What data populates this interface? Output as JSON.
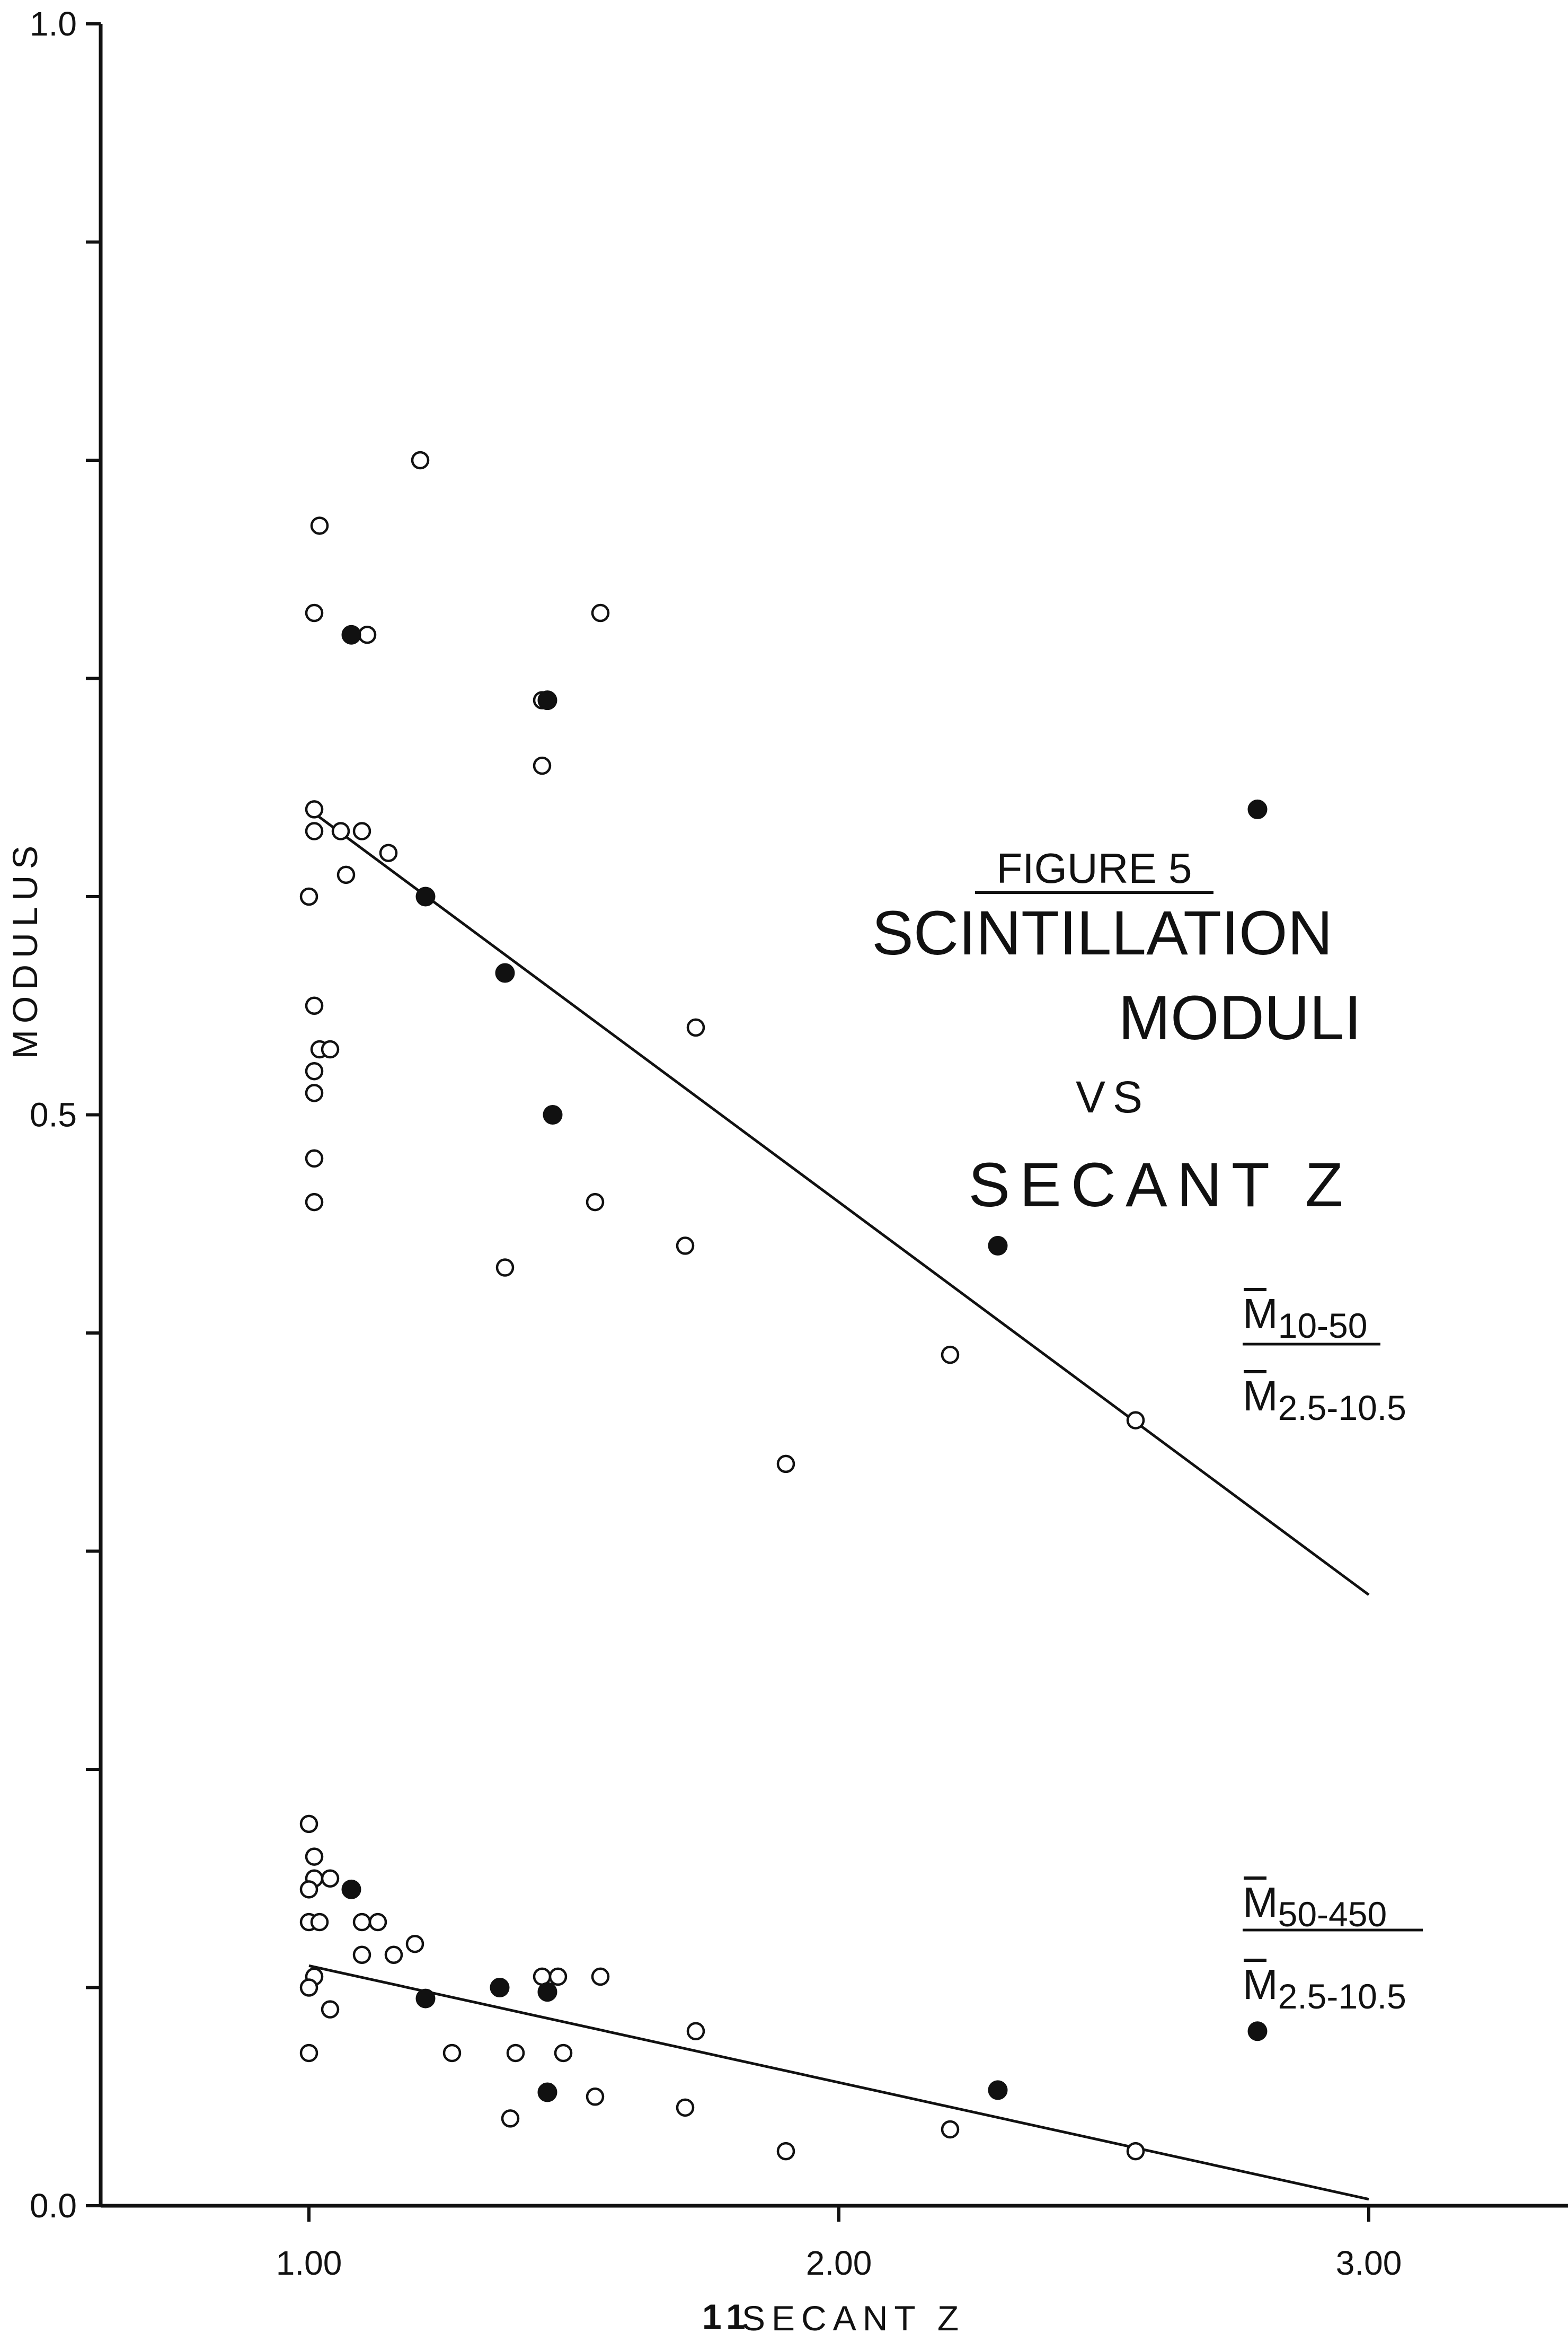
{
  "chart_data": {
    "type": "scatter",
    "title_lines": [
      "FIGURE 5",
      "SCINTILLATION",
      "MODULI",
      "VS",
      "SECANT Z"
    ],
    "xlabel": "SECANT Z",
    "xlabel_prefix": "11",
    "ylabel": "MODULUS",
    "xlim": [
      0.6,
      3.3
    ],
    "ylim": [
      0.0,
      1.0
    ],
    "x_ticks": [
      1.0,
      2.0,
      3.0
    ],
    "x_tick_labels": [
      "1.00",
      "2.00",
      "3.00"
    ],
    "y_ticks": [
      0.0,
      0.1,
      0.2,
      0.3,
      0.4,
      0.5,
      0.6,
      0.7,
      0.8,
      0.9,
      1.0
    ],
    "y_tick_labels": [
      "0.0",
      "",
      "",
      "",
      "",
      "0.5",
      "",
      "",
      "",
      "",
      "1.0"
    ],
    "grid": false,
    "groups": [
      {
        "label_num_base": "M",
        "label_num_sub": "10-50",
        "label_den_base": "M",
        "label_den_sub": "2.5-10.5",
        "open_points": [
          [
            1.02,
            0.77
          ],
          [
            1.21,
            0.8
          ],
          [
            1.01,
            0.73
          ],
          [
            1.11,
            0.72
          ],
          [
            1.55,
            0.73
          ],
          [
            1.44,
            0.69
          ],
          [
            1.44,
            0.66
          ],
          [
            1.01,
            0.64
          ],
          [
            1.01,
            0.63
          ],
          [
            1.06,
            0.63
          ],
          [
            1.1,
            0.63
          ],
          [
            1.15,
            0.62
          ],
          [
            1.07,
            0.61
          ],
          [
            1.0,
            0.6
          ],
          [
            1.01,
            0.55
          ],
          [
            1.02,
            0.53
          ],
          [
            1.04,
            0.53
          ],
          [
            1.01,
            0.52
          ],
          [
            1.01,
            0.51
          ],
          [
            1.73,
            0.54
          ],
          [
            1.01,
            0.48
          ],
          [
            1.01,
            0.46
          ],
          [
            1.54,
            0.46
          ],
          [
            1.37,
            0.43
          ],
          [
            1.71,
            0.44
          ],
          [
            2.21,
            0.39
          ],
          [
            2.56,
            0.36
          ],
          [
            1.9,
            0.34
          ]
        ],
        "filled_points": [
          [
            1.08,
            0.72
          ],
          [
            1.45,
            0.69
          ],
          [
            2.79,
            0.64
          ],
          [
            1.22,
            0.6
          ],
          [
            1.37,
            0.565
          ],
          [
            1.46,
            0.5
          ],
          [
            2.3,
            0.44
          ]
        ],
        "fit_line": {
          "x": [
            1.0,
            3.0
          ],
          "y": [
            0.64,
            0.28
          ]
        }
      },
      {
        "label_num_base": "M",
        "label_num_sub": "50-450",
        "label_den_base": "M",
        "label_den_sub": "2.5-10.5",
        "open_points": [
          [
            1.0,
            0.175
          ],
          [
            1.01,
            0.16
          ],
          [
            1.01,
            0.15
          ],
          [
            1.04,
            0.15
          ],
          [
            1.0,
            0.145
          ],
          [
            1.0,
            0.13
          ],
          [
            1.02,
            0.13
          ],
          [
            1.1,
            0.13
          ],
          [
            1.13,
            0.13
          ],
          [
            1.1,
            0.115
          ],
          [
            1.16,
            0.115
          ],
          [
            1.2,
            0.12
          ],
          [
            1.01,
            0.105
          ],
          [
            1.0,
            0.1
          ],
          [
            1.04,
            0.09
          ],
          [
            1.44,
            0.105
          ],
          [
            1.47,
            0.105
          ],
          [
            1.55,
            0.105
          ],
          [
            1.73,
            0.08
          ],
          [
            1.27,
            0.07
          ],
          [
            1.39,
            0.07
          ],
          [
            1.48,
            0.07
          ],
          [
            1.0,
            0.07
          ],
          [
            1.38,
            0.04
          ],
          [
            1.54,
            0.05
          ],
          [
            1.71,
            0.045
          ],
          [
            2.21,
            0.035
          ],
          [
            2.56,
            0.025
          ],
          [
            1.9,
            0.025
          ]
        ],
        "filled_points": [
          [
            1.08,
            0.145
          ],
          [
            1.22,
            0.095
          ],
          [
            1.36,
            0.1
          ],
          [
            1.45,
            0.098
          ],
          [
            2.79,
            0.08
          ],
          [
            1.45,
            0.052
          ],
          [
            2.3,
            0.053
          ]
        ],
        "fit_line": {
          "x": [
            1.0,
            3.0
          ],
          "y": [
            0.11,
            0.003
          ]
        }
      }
    ]
  }
}
